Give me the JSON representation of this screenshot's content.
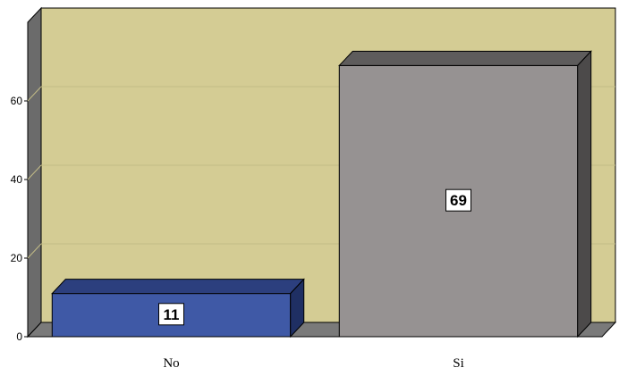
{
  "chart_data": {
    "type": "bar",
    "title": "",
    "xlabel": "",
    "ylabel": "",
    "categories": [
      "No",
      "Si"
    ],
    "values": [
      11,
      69
    ],
    "data_labels": [
      "11",
      "69"
    ],
    "ylim": [
      0,
      80
    ],
    "yticks": [
      0,
      20,
      40,
      60
    ],
    "ytick_labels": [
      "0",
      "20",
      "40",
      "60"
    ],
    "grid": true,
    "legend": "none",
    "colors": {
      "plot_background": "#D4CC94",
      "wall": "#6B6B6B",
      "floor": "#7A7A7A",
      "grid": "#C2BB86",
      "bars": [
        {
          "front": "#3F59A6",
          "top": "#2C3F7E",
          "side": "#1F2F63"
        },
        {
          "front": "#969292",
          "top": "#5E5C5C",
          "side": "#4C4A4A"
        }
      ]
    }
  }
}
